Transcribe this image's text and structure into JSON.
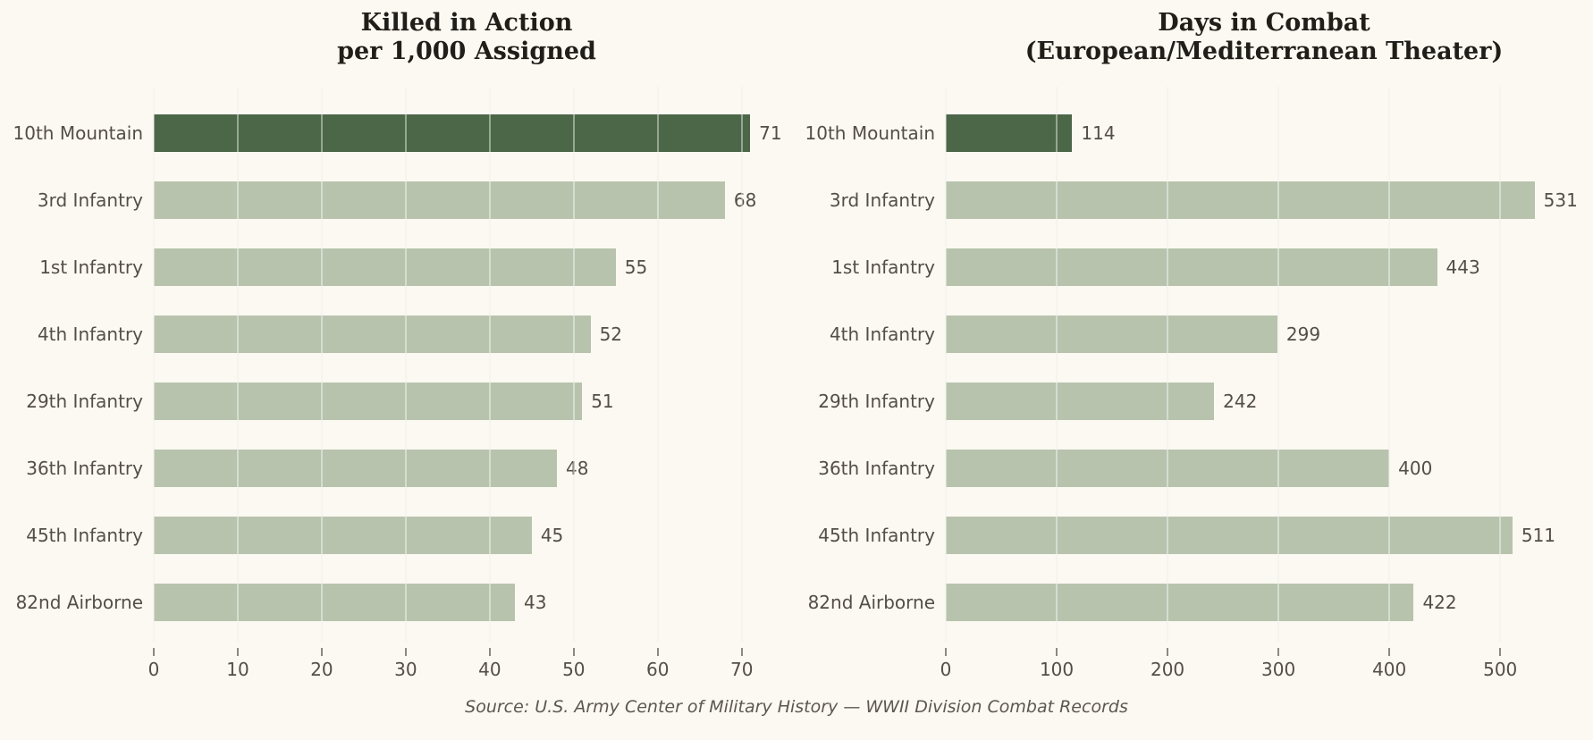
{
  "colors": {
    "background": "#FBF9F2",
    "bar_default": "#B8C3AD",
    "bar_highlight": "#4C6748",
    "text": "#534E47",
    "title_text": "#211E19",
    "gridline": "#EFECE4",
    "tick_mark": "#8D8880"
  },
  "source_note": "Source: U.S. Army Center of Military History — WWII Division Combat Records",
  "chart_data": [
    {
      "type": "bar",
      "orientation": "horizontal",
      "title": "Killed in Action\nper 1,000 Assigned",
      "title_lines": [
        "Killed in Action",
        "per 1,000 Assigned"
      ],
      "categories": [
        "10th Mountain",
        "3rd Infantry",
        "1st Infantry",
        "4th Infantry",
        "29th Infantry",
        "36th Infantry",
        "45th Infantry",
        "82nd Airborne"
      ],
      "values": [
        71,
        68,
        55,
        52,
        51,
        48,
        45,
        43
      ],
      "value_labels": [
        "71",
        "68",
        "55",
        "52",
        "51",
        "48",
        "45",
        "43"
      ],
      "highlight_category": "10th Mountain",
      "xticks": [
        0,
        10,
        20,
        30,
        40,
        50,
        60,
        70
      ],
      "xlim": [
        0,
        74.5
      ],
      "grid": true,
      "legend": false
    },
    {
      "type": "bar",
      "orientation": "horizontal",
      "title": "Days in Combat\n(European/Mediterranean Theater)",
      "title_lines": [
        "Days in Combat",
        "(European/Mediterranean Theater)"
      ],
      "categories": [
        "10th Mountain",
        "3rd Infantry",
        "1st Infantry",
        "4th Infantry",
        "29th Infantry",
        "36th Infantry",
        "45th Infantry",
        "82nd Airborne"
      ],
      "values": [
        114,
        531,
        443,
        299,
        242,
        400,
        511,
        422
      ],
      "value_labels": [
        "114",
        "531",
        "443",
        "299",
        "242",
        "400",
        "511",
        "422"
      ],
      "highlight_category": "10th Mountain",
      "xticks": [
        0,
        100,
        200,
        300,
        400,
        500
      ],
      "xlim": [
        0,
        574
      ],
      "grid": true,
      "legend": false
    }
  ]
}
